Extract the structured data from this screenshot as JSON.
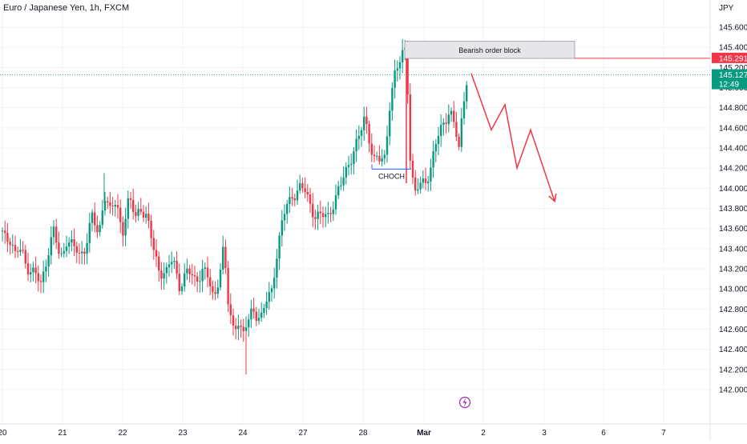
{
  "header": {
    "symbol_title": "Euro / Japanese Yen, 1h, FXCM",
    "currency": "JPY"
  },
  "colors": {
    "up": "#089981",
    "down": "#f23645",
    "grid": "#f0f3fa",
    "annotation": "#f23645",
    "order_block_fill": "#e6e6e9",
    "axis_text": "#131722"
  },
  "chart_data": {
    "type": "candlestick",
    "title": "Euro / Japanese Yen, 1h, FXCM",
    "ylabel": "JPY",
    "ylim": [
      141.9,
      145.75
    ],
    "yticks": [
      "142.000",
      "142.200",
      "142.400",
      "142.600",
      "142.800",
      "143.000",
      "143.200",
      "143.400",
      "143.600",
      "143.800",
      "144.000",
      "144.200",
      "144.400",
      "144.600",
      "144.800",
      "145.000",
      "145.200",
      "145.400",
      "145.600"
    ],
    "xticks": [
      {
        "label": "20",
        "t": 0
      },
      {
        "label": "21",
        "t": 75
      },
      {
        "label": "22",
        "t": 150
      },
      {
        "label": "23",
        "t": 225
      },
      {
        "label": "24",
        "t": 300
      },
      {
        "label": "27",
        "t": 375
      },
      {
        "label": "28",
        "t": 450
      },
      {
        "label": "Mar",
        "t": 526
      },
      {
        "label": "2",
        "t": 600
      },
      {
        "label": "3",
        "t": 676
      },
      {
        "label": "6",
        "t": 750
      },
      {
        "label": "7",
        "t": 825
      }
    ],
    "anchors": [
      [
        0,
        143.58
      ],
      [
        10,
        143.5
      ],
      [
        16,
        143.3
      ],
      [
        24,
        143.42
      ],
      [
        30,
        143.25
      ],
      [
        40,
        143.12
      ],
      [
        48,
        143.06
      ],
      [
        56,
        143.35
      ],
      [
        64,
        143.55
      ],
      [
        72,
        143.3
      ],
      [
        80,
        143.5
      ],
      [
        88,
        143.4
      ],
      [
        96,
        143.34
      ],
      [
        104,
        143.45
      ],
      [
        112,
        143.7
      ],
      [
        120,
        143.52
      ],
      [
        127,
        143.98
      ],
      [
        134,
        143.75
      ],
      [
        142,
        143.85
      ],
      [
        150,
        143.6
      ],
      [
        158,
        143.88
      ],
      [
        166,
        143.7
      ],
      [
        172,
        143.85
      ],
      [
        180,
        143.7
      ],
      [
        188,
        143.4
      ],
      [
        196,
        143.2
      ],
      [
        205,
        143.15
      ],
      [
        213,
        143.3
      ],
      [
        221,
        143.05
      ],
      [
        231,
        143.15
      ],
      [
        241,
        143.1
      ],
      [
        250,
        143.2
      ],
      [
        258,
        143.05
      ],
      [
        264,
        142.9
      ],
      [
        270,
        143.15
      ],
      [
        276,
        143.4
      ],
      [
        282,
        142.8
      ],
      [
        288,
        142.62
      ],
      [
        295,
        142.72
      ],
      [
        300,
        142.5
      ],
      [
        306,
        142.65
      ],
      [
        312,
        142.82
      ],
      [
        318,
        142.76
      ],
      [
        324,
        142.7
      ],
      [
        330,
        142.88
      ],
      [
        336,
        143.0
      ],
      [
        342,
        143.35
      ],
      [
        348,
        143.6
      ],
      [
        354,
        143.8
      ],
      [
        362,
        143.95
      ],
      [
        370,
        144.0
      ],
      [
        378,
        143.95
      ],
      [
        384,
        143.85
      ],
      [
        390,
        143.75
      ],
      [
        398,
        143.7
      ],
      [
        406,
        143.72
      ],
      [
        414,
        143.9
      ],
      [
        422,
        144.0
      ],
      [
        430,
        144.2
      ],
      [
        438,
        144.4
      ],
      [
        446,
        144.5
      ],
      [
        452,
        144.7
      ],
      [
        458,
        144.5
      ],
      [
        464,
        144.3
      ],
      [
        470,
        144.25
      ],
      [
        478,
        144.3
      ],
      [
        482,
        144.8
      ],
      [
        488,
        145.1
      ],
      [
        494,
        145.18
      ],
      [
        500,
        145.35
      ],
      [
        504,
        145.42
      ],
      [
        508,
        144.4
      ],
      [
        514,
        143.92
      ],
      [
        520,
        144.0
      ],
      [
        528,
        144.1
      ],
      [
        534,
        144.2
      ],
      [
        540,
        144.4
      ],
      [
        546,
        144.55
      ],
      [
        552,
        144.7
      ],
      [
        558,
        144.8
      ],
      [
        564,
        144.6
      ],
      [
        570,
        144.35
      ],
      [
        574,
        144.8
      ],
      [
        578,
        145.05
      ],
      [
        580,
        145.14
      ]
    ],
    "projection": [
      [
        585,
        145.14
      ],
      [
        610,
        144.58
      ],
      [
        627,
        144.83
      ],
      [
        642,
        144.2
      ],
      [
        659,
        144.58
      ],
      [
        689,
        143.87
      ]
    ],
    "annotations": {
      "order_block": {
        "label": "Bearish order block",
        "x": [
          502,
          714
        ],
        "y": [
          145.29,
          145.46
        ],
        "extends_to_price": 145.291
      },
      "choch": {
        "label": "CHOCH",
        "x": [
          461,
          510
        ],
        "y": 144.19
      }
    },
    "current_price": {
      "value": "145.127",
      "countdown": "12:49"
    },
    "marked_price": "145.291",
    "grid": true
  }
}
